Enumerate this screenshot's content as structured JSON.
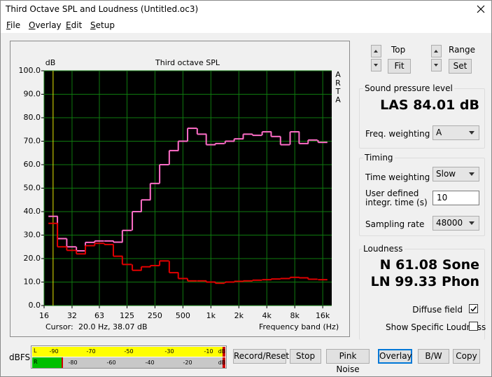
{
  "window": {
    "title": "Third Octave SPL and Loudness (Untitled.oc3)"
  },
  "menu": [
    "File",
    "Overlay",
    "Edit",
    "Setup"
  ],
  "chart_data": {
    "type": "line",
    "title": "Third octave SPL",
    "y_label": "dB",
    "x_label": "Frequency band (Hz)",
    "side_label": [
      "A",
      "R",
      "T",
      "A"
    ],
    "cursor_label": "Cursor:",
    "cursor_readout": "20.0 Hz, 38.07 dB",
    "cursor": 20,
    "x": [
      20,
      25,
      31.5,
      40,
      50,
      63,
      80,
      100,
      125,
      160,
      200,
      250,
      315,
      400,
      500,
      630,
      800,
      1000,
      1250,
      1600,
      2000,
      2500,
      3150,
      4000,
      5000,
      6300,
      8000,
      10000,
      12500,
      16000
    ],
    "series": [
      {
        "color": "#ff6ec8",
        "values": [
          38,
          28.5,
          25,
          23.3,
          26.9,
          27.5,
          27.5,
          27,
          32,
          40,
          45,
          52,
          60,
          66,
          70,
          75.5,
          73,
          68.5,
          69,
          70,
          71,
          73,
          72.5,
          74,
          72,
          68.5,
          74,
          69,
          70.5,
          69.5
        ]
      },
      {
        "color": "#e00000",
        "values": [
          35,
          25,
          23.5,
          22,
          25.5,
          26.5,
          26,
          21,
          17.5,
          15,
          16.5,
          17,
          19,
          14,
          11.5,
          10.5,
          10.5,
          10,
          9.5,
          10,
          10.3,
          10.5,
          10.8,
          11,
          11.3,
          11.5,
          12,
          11.8,
          11.2,
          11
        ]
      }
    ],
    "xscale": "log",
    "xlim": [
      16,
      20000
    ],
    "xticks": [
      16,
      32,
      63,
      125,
      250,
      500,
      {
        "value": 1000,
        "label": "1k"
      },
      {
        "value": 2000,
        "label": "2k"
      },
      {
        "value": 4000,
        "label": "4k"
      },
      {
        "value": 8000,
        "label": "8k"
      },
      {
        "value": 16000,
        "label": "16k"
      }
    ],
    "ylim": [
      0,
      100
    ],
    "yticks": [
      {
        "value": 0,
        "label": "0.0"
      },
      {
        "value": 10,
        "label": "10.0"
      },
      {
        "value": 20,
        "label": "20.0"
      },
      {
        "value": 30,
        "label": "30.0"
      },
      {
        "value": 40,
        "label": "40.0"
      },
      {
        "value": 50,
        "label": "50.0"
      },
      {
        "value": 60,
        "label": "60.0"
      },
      {
        "value": 70,
        "label": "70.0"
      },
      {
        "value": 80,
        "label": "80.0"
      },
      {
        "value": 90,
        "label": "90.0"
      },
      {
        "value": 100,
        "label": "100.0"
      }
    ],
    "grid": true
  },
  "controls": {
    "top_label": "Top",
    "fit": "Fit",
    "range_label": "Range",
    "set": "Set",
    "spl": {
      "group": "Sound pressure level",
      "reading": "LAS 84.01 dB",
      "freq_weighting_label": "Freq. weighting",
      "freq_weighting": "A"
    },
    "timing": {
      "group": "Timing",
      "time_weighting_label": "Time weighting",
      "time_weighting": "Slow",
      "integr_label": [
        "User defined",
        "integr. time (s)"
      ],
      "integr_time": "10",
      "sampling_rate_label": "Sampling rate",
      "sampling_rate": "48000"
    },
    "loudness": {
      "group": "Loudness",
      "n": "N 61.08 Sone",
      "ln": "LN 99.33 Phon",
      "diffuse_field": "Diffuse field",
      "diffuse_checked": true,
      "show_specific": "Show Specific Loudness",
      "show_specific_checked": false
    }
  },
  "meter": {
    "label": "dBFS",
    "l": "L",
    "r": "R",
    "top_scale": [
      "-90",
      "-70",
      "-50",
      "-30",
      "-10",
      "dB"
    ],
    "bottom_scale": [
      "-80",
      "-60",
      "-40",
      "-20",
      "dB"
    ]
  },
  "buttons": [
    "Record/Reset",
    "Stop",
    "Pink Noise",
    "Overlay",
    "B/W",
    "Copy"
  ]
}
